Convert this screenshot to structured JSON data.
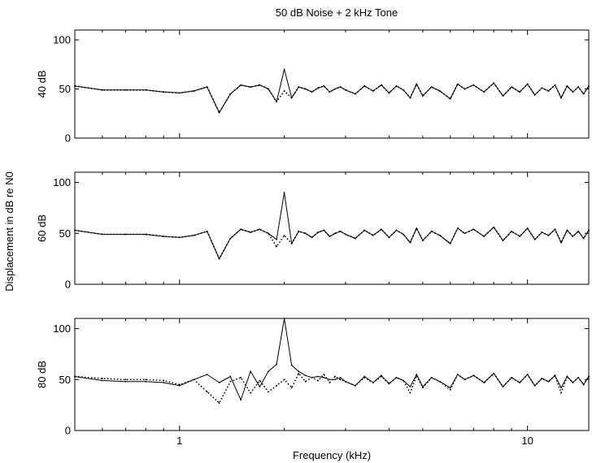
{
  "figure": {
    "title": "50 dB Noise + 2 kHz Tone",
    "xlabel": "Frequency (kHz)",
    "ylabel": "Displacement in dB re N0"
  },
  "chart_data": {
    "type": "line",
    "x_scale": "log",
    "xlim": [
      0.5,
      15
    ],
    "xticks": [
      1,
      10
    ],
    "xtick_labels": [
      "1",
      "10"
    ],
    "ylim": [
      0,
      110
    ],
    "yticks": [
      0,
      50,
      100
    ],
    "ytick_labels": [
      "0",
      "50",
      "100"
    ],
    "grid": false,
    "panels": [
      {
        "ylabel": "40 dB",
        "x": [
          0.5,
          0.6,
          0.7,
          0.8,
          0.9,
          1.0,
          1.1,
          1.2,
          1.3,
          1.4,
          1.5,
          1.6,
          1.7,
          1.8,
          1.9,
          2.0,
          2.1,
          2.2,
          2.3,
          2.4,
          2.5,
          2.6,
          2.7,
          2.8,
          2.9,
          3.0,
          3.2,
          3.4,
          3.6,
          3.8,
          4.0,
          4.2,
          4.4,
          4.6,
          4.8,
          5.0,
          5.3,
          5.6,
          6.0,
          6.3,
          6.6,
          7.0,
          7.5,
          8.0,
          8.5,
          9.0,
          9.5,
          10.0,
          10.5,
          11.0,
          11.5,
          12.0,
          12.5,
          13.0,
          13.5,
          14.0,
          14.5,
          15.0
        ],
        "series": [
          {
            "style": "solid",
            "values": [
              53,
              49,
              49,
              49,
              47,
              46,
              48,
              52,
              26,
              45,
              54,
              52,
              54,
              50,
              37,
              70,
              41,
              52,
              50,
              47,
              51,
              53,
              47,
              50,
              52,
              49,
              45,
              53,
              48,
              54,
              46,
              53,
              49,
              41,
              55,
              43,
              52,
              48,
              40,
              55,
              50,
              54,
              47,
              56,
              43,
              52,
              47,
              55,
              44,
              51,
              48,
              54,
              41,
              53,
              47,
              52,
              45,
              53
            ]
          },
          {
            "style": "dotted",
            "values": [
              53,
              49,
              49,
              49,
              47,
              46,
              48,
              52,
              26,
              45,
              54,
              52,
              54,
              50,
              37,
              48,
              41,
              52,
              50,
              47,
              51,
              53,
              47,
              50,
              52,
              49,
              45,
              53,
              48,
              54,
              46,
              53,
              49,
              41,
              55,
              43,
              52,
              48,
              40,
              55,
              50,
              54,
              47,
              56,
              43,
              52,
              47,
              55,
              44,
              51,
              48,
              54,
              41,
              53,
              47,
              52,
              45,
              53
            ]
          }
        ]
      },
      {
        "ylabel": "60 dB",
        "x": [
          0.5,
          0.6,
          0.7,
          0.8,
          0.9,
          1.0,
          1.1,
          1.2,
          1.3,
          1.4,
          1.5,
          1.6,
          1.7,
          1.8,
          1.9,
          2.0,
          2.1,
          2.2,
          2.3,
          2.4,
          2.5,
          2.6,
          2.7,
          2.8,
          2.9,
          3.0,
          3.2,
          3.4,
          3.6,
          3.8,
          4.0,
          4.2,
          4.4,
          4.6,
          4.8,
          5.0,
          5.3,
          5.6,
          6.0,
          6.3,
          6.6,
          7.0,
          7.5,
          8.0,
          8.5,
          9.0,
          9.5,
          10.0,
          10.5,
          11.0,
          11.5,
          12.0,
          12.5,
          13.0,
          13.5,
          14.0,
          14.5,
          15.0
        ],
        "series": [
          {
            "style": "solid",
            "values": [
              53,
              49,
              49,
              49,
              47,
              46,
              48,
              52,
              25,
              45,
              54,
              51,
              54,
              50,
              44,
              90,
              40,
              52,
              50,
              46,
              51,
              53,
              47,
              50,
              52,
              49,
              45,
              53,
              48,
              54,
              46,
              53,
              49,
              41,
              55,
              43,
              52,
              48,
              40,
              55,
              50,
              54,
              47,
              56,
              43,
              52,
              47,
              55,
              44,
              51,
              48,
              54,
              41,
              53,
              47,
              52,
              45,
              53
            ]
          },
          {
            "style": "dotted",
            "values": [
              53,
              49,
              49,
              49,
              47,
              46,
              48,
              52,
              25,
              45,
              54,
              51,
              54,
              50,
              37,
              48,
              40,
              52,
              50,
              46,
              51,
              53,
              47,
              50,
              52,
              49,
              45,
              53,
              48,
              54,
              46,
              53,
              49,
              41,
              55,
              43,
              52,
              48,
              40,
              55,
              50,
              54,
              47,
              56,
              43,
              52,
              47,
              55,
              44,
              51,
              48,
              54,
              41,
              53,
              47,
              52,
              45,
              53
            ]
          }
        ]
      },
      {
        "ylabel": "80 dB",
        "x": [
          0.5,
          0.6,
          0.7,
          0.8,
          0.9,
          1.0,
          1.1,
          1.2,
          1.3,
          1.4,
          1.5,
          1.6,
          1.7,
          1.8,
          1.9,
          2.0,
          2.1,
          2.2,
          2.3,
          2.4,
          2.5,
          2.6,
          2.7,
          2.8,
          2.9,
          3.0,
          3.2,
          3.4,
          3.6,
          3.8,
          4.0,
          4.2,
          4.4,
          4.6,
          4.8,
          5.0,
          5.3,
          5.6,
          6.0,
          6.3,
          6.6,
          7.0,
          7.5,
          8.0,
          8.5,
          9.0,
          9.5,
          10.0,
          10.5,
          11.0,
          11.5,
          12.0,
          12.5,
          13.0,
          13.5,
          14.0,
          14.5,
          15.0
        ],
        "series": [
          {
            "style": "solid",
            "values": [
              53,
              49,
              48,
              48,
              47,
              44,
              50,
              55,
              47,
              53,
              30,
              58,
              43,
              58,
              65,
              110,
              64,
              58,
              54,
              52,
              53,
              52,
              50,
              50,
              52,
              48,
              44,
              53,
              47,
              54,
              46,
              52,
              49,
              43,
              55,
              43,
              52,
              48,
              42,
              55,
              50,
              54,
              47,
              56,
              43,
              52,
              47,
              55,
              44,
              51,
              48,
              54,
              42,
              53,
              47,
              52,
              45,
              53
            ]
          },
          {
            "style": "dotted",
            "values": [
              53,
              51,
              50,
              50,
              49,
              45,
              50,
              38,
              27,
              48,
              52,
              37,
              49,
              38,
              44,
              50,
              42,
              56,
              48,
              52,
              49,
              55,
              47,
              53,
              50,
              48,
              44,
              52,
              47,
              53,
              46,
              52,
              49,
              37,
              54,
              42,
              52,
              48,
              40,
              55,
              50,
              54,
              47,
              56,
              43,
              52,
              47,
              55,
              44,
              51,
              48,
              54,
              37,
              53,
              47,
              52,
              45,
              53
            ]
          }
        ]
      }
    ]
  }
}
